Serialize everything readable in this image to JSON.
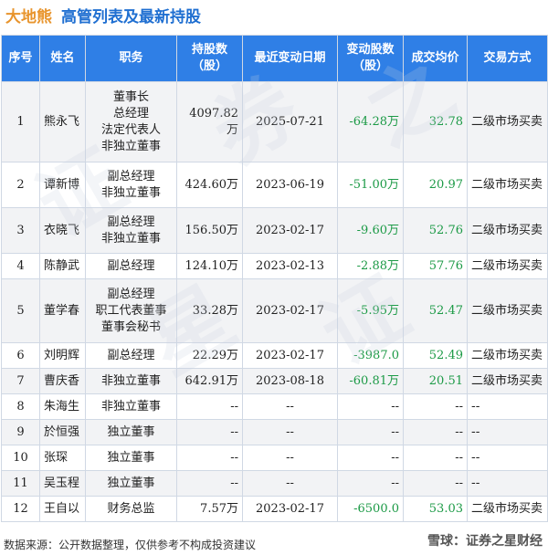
{
  "header": {
    "company": "大地熊",
    "title": "高管列表及最新持股"
  },
  "columns": [
    "序号",
    "姓名",
    "职务",
    "持股数\n（股）",
    "最近变动日期",
    "变动股数\n（股）",
    "成交均价",
    "交易方式"
  ],
  "rows": [
    {
      "no": "1",
      "name": "熊永飞",
      "role": "董事长\n总经理\n法定代表人\n非独立董事",
      "shares": "4097.82万",
      "date": "2025-07-21",
      "change": "-64.28万",
      "price": "32.78",
      "method": "二级市场买卖"
    },
    {
      "no": "2",
      "name": "谭新博",
      "role": "副总经理\n非独立董事",
      "shares": "424.60万",
      "date": "2023-06-19",
      "change": "-51.00万",
      "price": "20.97",
      "method": "二级市场买卖"
    },
    {
      "no": "3",
      "name": "衣晓飞",
      "role": "副总经理\n非独立董事",
      "shares": "156.50万",
      "date": "2023-02-17",
      "change": "-9.60万",
      "price": "52.76",
      "method": "二级市场买卖"
    },
    {
      "no": "4",
      "name": "陈静武",
      "role": "副总经理",
      "shares": "124.10万",
      "date": "2023-02-13",
      "change": "-2.88万",
      "price": "57.76",
      "method": "二级市场买卖"
    },
    {
      "no": "5",
      "name": "董学春",
      "role": "副总经理\n职工代表董事\n董事会秘书",
      "shares": "33.28万",
      "date": "2023-02-17",
      "change": "-5.95万",
      "price": "52.47",
      "method": "二级市场买卖"
    },
    {
      "no": "6",
      "name": "刘明辉",
      "role": "副总经理",
      "shares": "22.29万",
      "date": "2023-02-17",
      "change": "-3987.0",
      "price": "52.49",
      "method": "二级市场买卖"
    },
    {
      "no": "7",
      "name": "曹庆香",
      "role": "非独立董事",
      "shares": "642.91万",
      "date": "2023-08-18",
      "change": "-60.81万",
      "price": "20.51",
      "method": "二级市场买卖"
    },
    {
      "no": "8",
      "name": "朱海生",
      "role": "非独立董事",
      "shares": "--",
      "date": "--",
      "change": "--",
      "price": "--",
      "method": "--"
    },
    {
      "no": "9",
      "name": "於恒强",
      "role": "独立董事",
      "shares": "--",
      "date": "--",
      "change": "--",
      "price": "--",
      "method": "--"
    },
    {
      "no": "10",
      "name": "张琛",
      "role": "独立董事",
      "shares": "--",
      "date": "--",
      "change": "--",
      "price": "--",
      "method": "--"
    },
    {
      "no": "11",
      "name": "吴玉程",
      "role": "独立董事",
      "shares": "--",
      "date": "--",
      "change": "--",
      "price": "--",
      "method": "--"
    },
    {
      "no": "12",
      "name": "王自以",
      "role": "财务总监",
      "shares": "7.57万",
      "date": "2023-02-17",
      "change": "-6500.0",
      "price": "53.03",
      "method": "二级市场买卖"
    }
  ],
  "footer": {
    "source": "数据来源：公开数据整理，仅供参考不构成投资建议"
  },
  "branding": {
    "text": "雪球：证券之星财经"
  }
}
